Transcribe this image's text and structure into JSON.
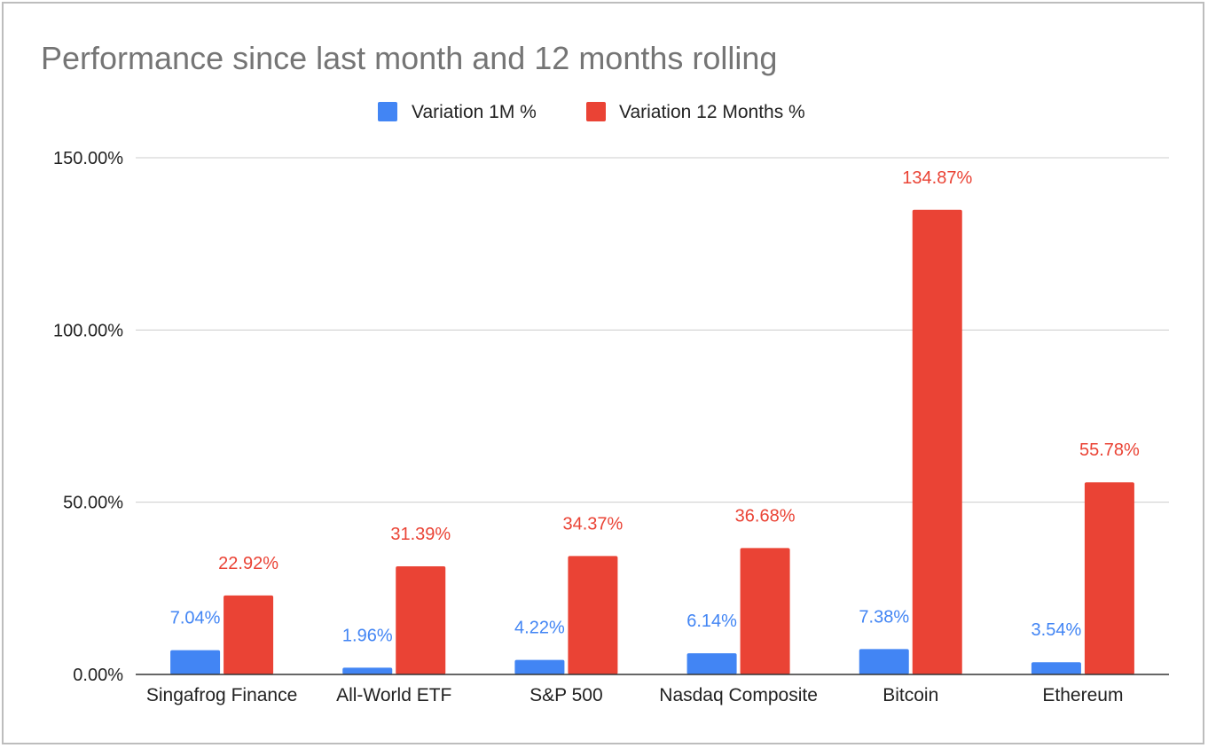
{
  "chart_data": {
    "type": "bar",
    "title": "Performance since last month and 12 months rolling",
    "categories": [
      "Singafrog Finance",
      "All-World ETF",
      "S&P 500",
      "Nasdaq Composite",
      "Bitcoin",
      "Ethereum"
    ],
    "series": [
      {
        "name": "Variation 1M %",
        "color": "#4285f4",
        "values": [
          7.04,
          1.96,
          4.22,
          6.14,
          7.38,
          3.54
        ],
        "labels": [
          "7.04%",
          "1.96%",
          "4.22%",
          "6.14%",
          "7.38%",
          "3.54%"
        ]
      },
      {
        "name": "Variation 12 Months %",
        "color": "#ea4335",
        "values": [
          22.92,
          31.39,
          34.37,
          36.68,
          134.87,
          55.78
        ],
        "labels": [
          "22.92%",
          "31.39%",
          "34.37%",
          "36.68%",
          "134.87%",
          "55.78%"
        ]
      }
    ],
    "yticks": [
      "0.00%",
      "50.00%",
      "100.00%",
      "150.00%"
    ],
    "ytick_values": [
      0,
      50,
      100,
      150
    ],
    "ylim": [
      0,
      150
    ],
    "legend_position": "top",
    "grid": true
  }
}
